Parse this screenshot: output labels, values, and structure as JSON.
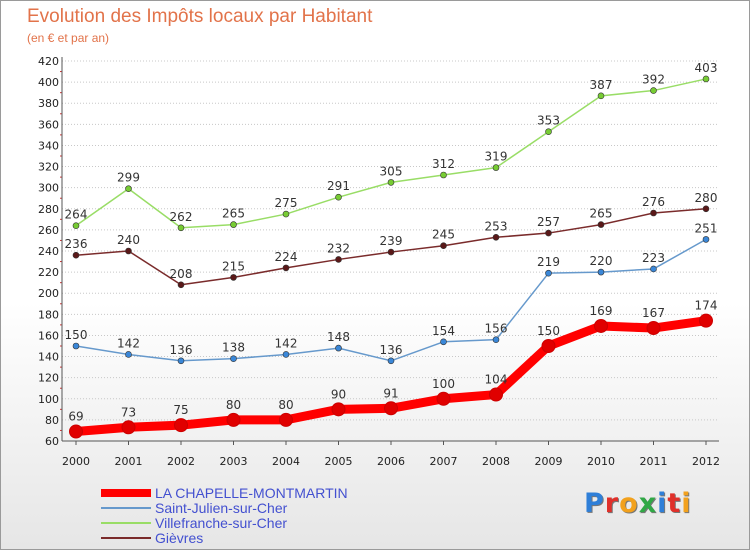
{
  "title": "Evolution des Impôts locaux par Habitant",
  "subtitle": "(en € et par an)",
  "logo": {
    "text": "Proxiti",
    "colors": [
      "#2f7fd8",
      "#e0302a",
      "#f2a11d",
      "#31a846",
      "#2f7fd8",
      "#e0302a",
      "#f2a11d"
    ]
  },
  "chart_data": {
    "type": "line",
    "title": "Evolution des Impôts locaux par Habitant",
    "subtitle": "(en € et par an)",
    "xlabel": "",
    "ylabel": "",
    "x": [
      "2000",
      "2001",
      "2002",
      "2003",
      "2004",
      "2005",
      "2006",
      "2007",
      "2008",
      "2009",
      "2010",
      "2011",
      "2012"
    ],
    "ylim": [
      60,
      420
    ],
    "yticks": [
      60,
      80,
      100,
      120,
      140,
      160,
      180,
      200,
      220,
      240,
      260,
      280,
      300,
      320,
      340,
      360,
      380,
      400,
      420
    ],
    "grid": "horizontal dotted",
    "legend_position": "bottom-left",
    "series": [
      {
        "name": "LA CHAPELLE-MONTMARTIN",
        "color": "#ff0000",
        "marker": "#e00000",
        "width": 9,
        "values": [
          69,
          73,
          75,
          80,
          80,
          90,
          91,
          100,
          104,
          150,
          169,
          167,
          174
        ]
      },
      {
        "name": "Saint-Julien-sur-Cher",
        "color": "#6699cc",
        "marker": "#3a87d8",
        "width": 1.5,
        "values": [
          150,
          142,
          136,
          138,
          142,
          148,
          136,
          154,
          156,
          219,
          220,
          223,
          251
        ]
      },
      {
        "name": "Villefranche-sur-Cher",
        "color": "#99dd66",
        "marker": "#77cc33",
        "width": 1.5,
        "values": [
          264,
          299,
          262,
          265,
          275,
          291,
          305,
          312,
          319,
          353,
          387,
          392,
          403
        ]
      },
      {
        "name": "Gièvres",
        "color": "#7a2b2b",
        "marker": "#5a1818",
        "width": 1.5,
        "values": [
          236,
          240,
          208,
          215,
          224,
          232,
          239,
          245,
          253,
          257,
          265,
          276,
          280
        ]
      }
    ]
  }
}
